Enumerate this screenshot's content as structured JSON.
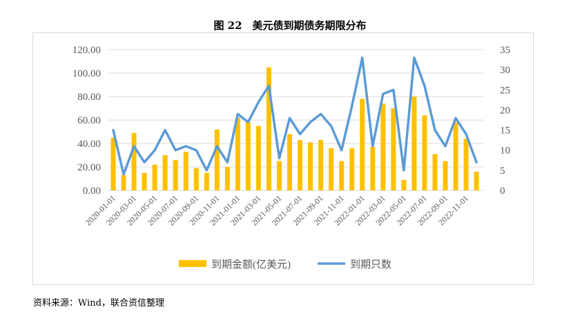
{
  "title": "图 22　美元债到期债务期限分布",
  "source": "资料来源：Wind，联合资信整理",
  "chart_data": {
    "type": "bar+line",
    "title": "图 22　美元债到期债务期限分布",
    "x": [
      "2020-01-01",
      "2020-02-01",
      "2020-03-01",
      "2020-04-01",
      "2020-05-01",
      "2020-06-01",
      "2020-07-01",
      "2020-08-01",
      "2020-09-01",
      "2020-10-01",
      "2020-11-01",
      "2020-12-01",
      "2021-01-01",
      "2021-02-01",
      "2021-03-01",
      "2021-04-01",
      "2021-05-01",
      "2021-06-01",
      "2021-07-01",
      "2021-08-01",
      "2021-09-01",
      "2021-10-01",
      "2021-11-01",
      "2021-12-01",
      "2022-01-01",
      "2022-02-01",
      "2022-03-01",
      "2022-04-01",
      "2022-05-01",
      "2022-06-01",
      "2022-07-01",
      "2022-08-01",
      "2022-09-01",
      "2022-10-01",
      "2022-11-01",
      "2022-12-01"
    ],
    "tick_labels": [
      "2020-01-01",
      "2020-03-01",
      "2020-05-01",
      "2020-07-01",
      "2020-09-01",
      "2020-11-01",
      "2021-01-01",
      "2021-03-01",
      "2021-05-01",
      "2021-07-01",
      "2021-09-01",
      "2021-11-01",
      "2022-01-01",
      "2022-03-01",
      "2022-05-01",
      "2022-07-01",
      "2022-09-01",
      "2022-11-01"
    ],
    "series": [
      {
        "name": "到期金额(亿美元)",
        "type": "bar",
        "axis": "left",
        "color": "#FFC000",
        "values": [
          45,
          13,
          49,
          15,
          22,
          30,
          26,
          33,
          19,
          15,
          52,
          20,
          62,
          58,
          55,
          105,
          25,
          48,
          43,
          41,
          43,
          36,
          25,
          36,
          78,
          37,
          74,
          70,
          9,
          80,
          64,
          31,
          25,
          58,
          44,
          16
        ]
      },
      {
        "name": "到期只数",
        "type": "line",
        "axis": "right",
        "color": "#5B9BD5",
        "values": [
          15,
          4,
          11,
          7,
          10,
          15,
          10,
          11,
          10,
          5,
          11,
          7,
          19,
          17,
          22,
          26,
          8,
          18,
          14,
          17,
          19,
          16,
          10,
          21,
          33,
          11,
          24,
          25,
          5,
          33,
          26,
          15,
          11,
          18,
          14,
          7
        ]
      }
    ],
    "y_left": {
      "lim": [
        0,
        120
      ],
      "ticks": [
        "0.00",
        "20.00",
        "40.00",
        "60.00",
        "80.00",
        "100.00",
        "120.00"
      ]
    },
    "y_right": {
      "lim": [
        0,
        35
      ],
      "ticks": [
        "0",
        "5",
        "10",
        "15",
        "20",
        "25",
        "30",
        "35"
      ]
    },
    "grid": true,
    "legend": "bottom"
  }
}
